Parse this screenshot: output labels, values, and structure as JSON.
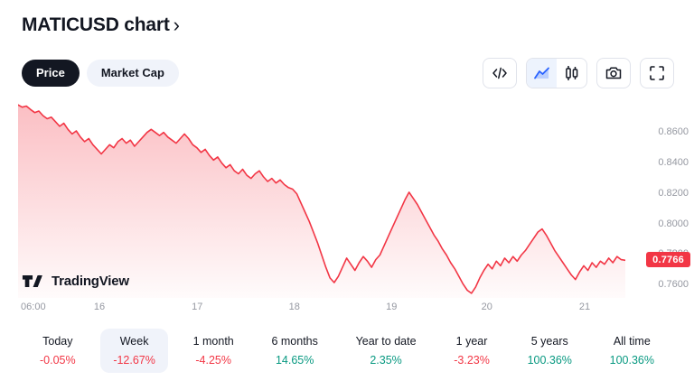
{
  "header": {
    "title": "MATICUSD chart",
    "chevron": "›"
  },
  "tabs": {
    "price": "Price",
    "market_cap": "Market Cap"
  },
  "toolbar": {
    "buttons": [
      "code",
      "area-chart",
      "candlestick",
      "camera",
      "fullscreen"
    ]
  },
  "attribution": {
    "logo_text": "TradingView"
  },
  "colors": {
    "negative": "#f23645",
    "positive": "#089981",
    "accent_blue": "#2962ff",
    "text": "#131722",
    "muted": "#9598a1",
    "selected_bg": "#f0f3fa"
  },
  "chart_data": {
    "type": "area",
    "symbol": "MATICUSD",
    "line_color": "#f23645",
    "ylim": [
      0.752,
      0.884
    ],
    "y_ticks": [
      "0.8600",
      "0.8400",
      "0.8200",
      "0.8000",
      "0.7800",
      "0.7600"
    ],
    "x_ticks": [
      {
        "label": "06:00",
        "pos": 0.025
      },
      {
        "label": "16",
        "pos": 0.134
      },
      {
        "label": "17",
        "pos": 0.295
      },
      {
        "label": "18",
        "pos": 0.455
      },
      {
        "label": "19",
        "pos": 0.615
      },
      {
        "label": "20",
        "pos": 0.772
      },
      {
        "label": "21",
        "pos": 0.933
      }
    ],
    "last_price": "0.7766",
    "values": [
      0.878,
      0.8765,
      0.8772,
      0.875,
      0.873,
      0.874,
      0.871,
      0.869,
      0.87,
      0.867,
      0.864,
      0.866,
      0.862,
      0.859,
      0.861,
      0.857,
      0.854,
      0.856,
      0.852,
      0.849,
      0.846,
      0.849,
      0.852,
      0.85,
      0.854,
      0.856,
      0.853,
      0.855,
      0.851,
      0.854,
      0.857,
      0.86,
      0.862,
      0.86,
      0.858,
      0.86,
      0.857,
      0.855,
      0.853,
      0.856,
      0.859,
      0.856,
      0.852,
      0.85,
      0.847,
      0.849,
      0.845,
      0.842,
      0.844,
      0.84,
      0.837,
      0.839,
      0.835,
      0.833,
      0.836,
      0.832,
      0.83,
      0.833,
      0.835,
      0.831,
      0.828,
      0.83,
      0.827,
      0.829,
      0.826,
      0.824,
      0.823,
      0.82,
      0.814,
      0.808,
      0.802,
      0.795,
      0.788,
      0.78,
      0.772,
      0.765,
      0.762,
      0.766,
      0.772,
      0.778,
      0.774,
      0.77,
      0.775,
      0.779,
      0.776,
      0.772,
      0.777,
      0.78,
      0.786,
      0.792,
      0.798,
      0.804,
      0.81,
      0.816,
      0.821,
      0.817,
      0.813,
      0.808,
      0.803,
      0.798,
      0.793,
      0.789,
      0.784,
      0.78,
      0.775,
      0.771,
      0.766,
      0.761,
      0.757,
      0.755,
      0.759,
      0.765,
      0.77,
      0.774,
      0.771,
      0.776,
      0.773,
      0.778,
      0.775,
      0.779,
      0.776,
      0.78,
      0.783,
      0.787,
      0.791,
      0.795,
      0.797,
      0.793,
      0.788,
      0.783,
      0.779,
      0.775,
      0.771,
      0.767,
      0.764,
      0.769,
      0.773,
      0.77,
      0.775,
      0.772,
      0.776,
      0.774,
      0.778,
      0.775,
      0.779,
      0.777,
      0.7766
    ]
  },
  "periods": [
    {
      "label": "Today",
      "value": "-0.05%",
      "direction": "down",
      "selected": false
    },
    {
      "label": "Week",
      "value": "-12.67%",
      "direction": "down",
      "selected": true
    },
    {
      "label": "1 month",
      "value": "-4.25%",
      "direction": "down",
      "selected": false
    },
    {
      "label": "6 months",
      "value": "14.65%",
      "direction": "up",
      "selected": false
    },
    {
      "label": "Year to date",
      "value": "2.35%",
      "direction": "up",
      "selected": false
    },
    {
      "label": "1 year",
      "value": "-3.23%",
      "direction": "down",
      "selected": false
    },
    {
      "label": "5 years",
      "value": "100.36%",
      "direction": "up",
      "selected": false
    },
    {
      "label": "All time",
      "value": "100.36%",
      "direction": "up",
      "selected": false
    }
  ]
}
